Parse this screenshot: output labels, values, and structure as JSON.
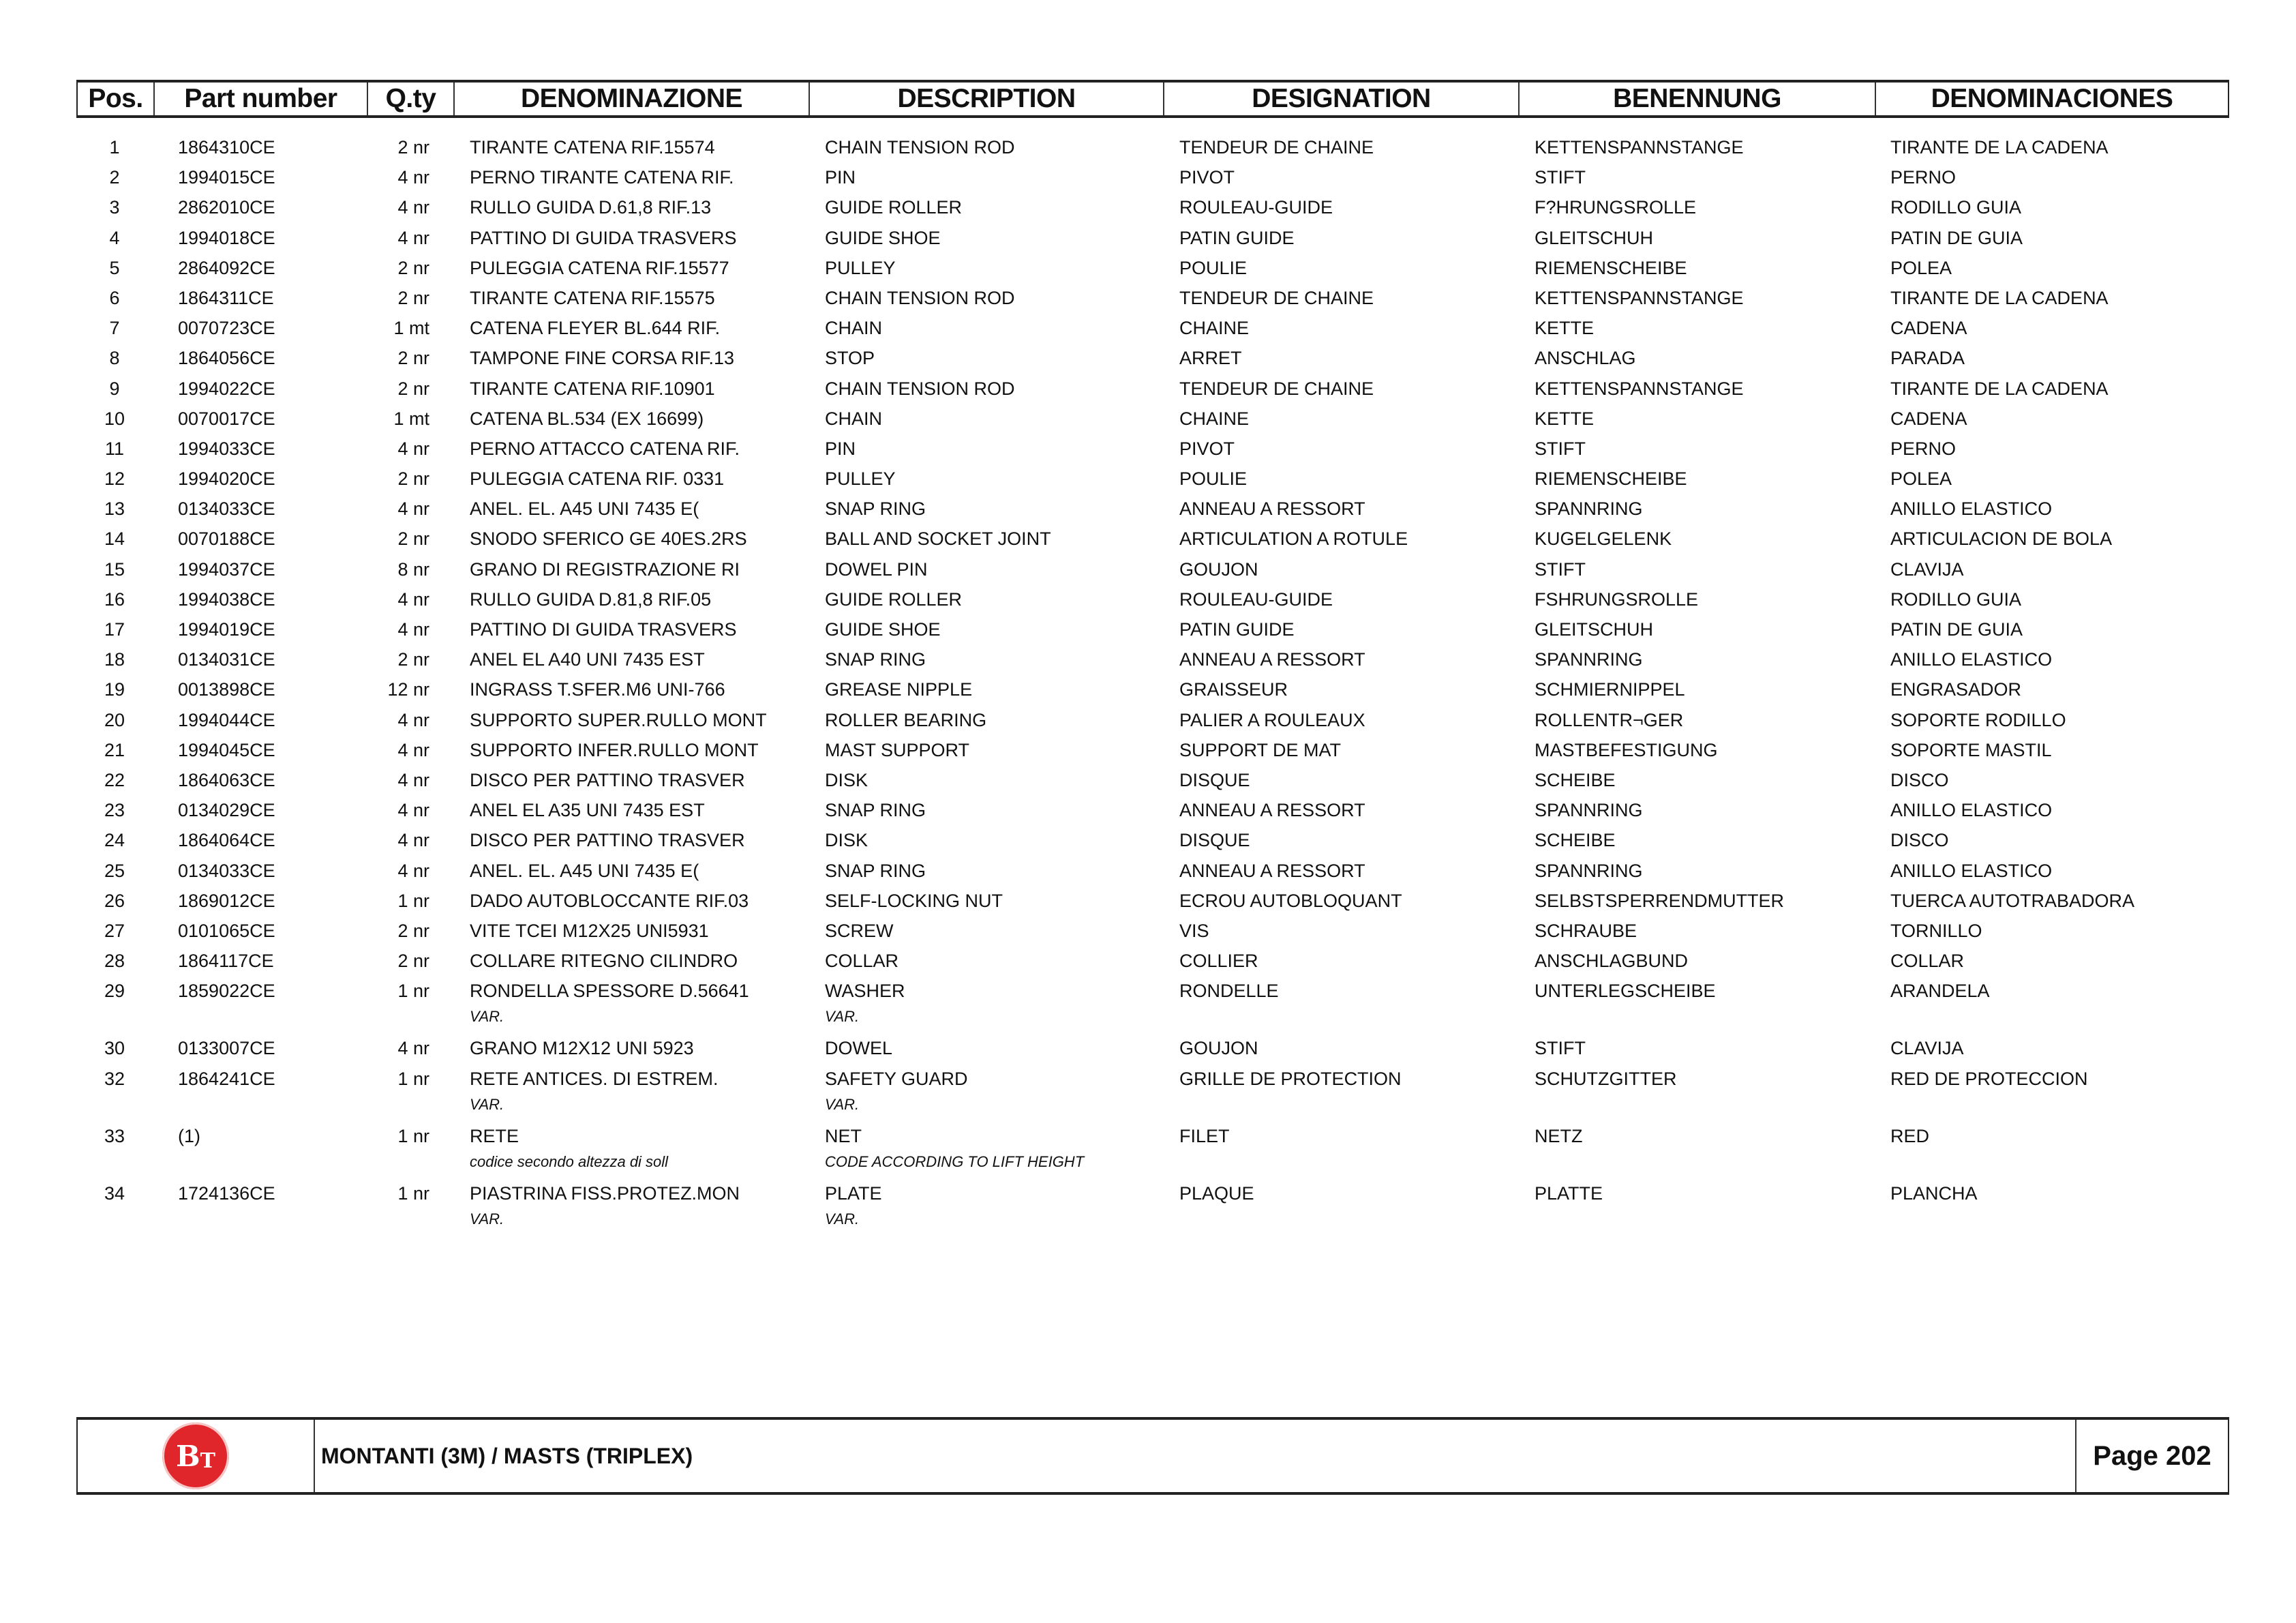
{
  "columns": {
    "pos": "Pos.",
    "part": "Part number",
    "qty": "Q.ty",
    "denominazione": "DENOMINAZIONE",
    "description": "DESCRIPTION",
    "designation": "DESIGNATION",
    "benennung": "BENENNUNG",
    "denominaciones": "DENOMINACIONES"
  },
  "rows": [
    {
      "pos": "1",
      "part": "1864310CE",
      "qty": "2 nr",
      "den": "TIRANTE CATENA RIF.15574",
      "desc": "CHAIN TENSION ROD",
      "des": "TENDEUR DE CHAINE",
      "ben": "KETTENSPANNSTANGE",
      "dens": "TIRANTE DE LA CADENA"
    },
    {
      "pos": "2",
      "part": "1994015CE",
      "qty": "4 nr",
      "den": "PERNO TIRANTE CATENA RIF.",
      "desc": "PIN",
      "des": "PIVOT",
      "ben": "STIFT",
      "dens": "PERNO"
    },
    {
      "pos": "3",
      "part": "2862010CE",
      "qty": "4 nr",
      "den": "RULLO GUIDA D.61,8 RIF.13",
      "desc": "GUIDE ROLLER",
      "des": "ROULEAU-GUIDE",
      "ben": "F?HRUNGSROLLE",
      "dens": "RODILLO GUIA"
    },
    {
      "pos": "4",
      "part": "1994018CE",
      "qty": "4 nr",
      "den": "PATTINO DI GUIDA TRASVERS",
      "desc": "GUIDE SHOE",
      "des": "PATIN GUIDE",
      "ben": "GLEITSCHUH",
      "dens": "PATIN DE GUIA"
    },
    {
      "pos": "5",
      "part": "2864092CE",
      "qty": "2 nr",
      "den": "PULEGGIA CATENA RIF.15577",
      "desc": "PULLEY",
      "des": "POULIE",
      "ben": "RIEMENSCHEIBE",
      "dens": "POLEA"
    },
    {
      "pos": "6",
      "part": "1864311CE",
      "qty": "2 nr",
      "den": "TIRANTE CATENA RIF.15575",
      "desc": "CHAIN TENSION ROD",
      "des": "TENDEUR DE CHAINE",
      "ben": "KETTENSPANNSTANGE",
      "dens": "TIRANTE DE LA CADENA"
    },
    {
      "pos": "7",
      "part": "0070723CE",
      "qty": "1 mt",
      "den": "CATENA FLEYER BL.644 RIF.",
      "desc": "CHAIN",
      "des": "CHAINE",
      "ben": "KETTE",
      "dens": "CADENA"
    },
    {
      "pos": "8",
      "part": "1864056CE",
      "qty": "2 nr",
      "den": "TAMPONE FINE CORSA RIF.13",
      "desc": "STOP",
      "des": "ARRET",
      "ben": "ANSCHLAG",
      "dens": "PARADA"
    },
    {
      "pos": "9",
      "part": "1994022CE",
      "qty": "2 nr",
      "den": "TIRANTE CATENA RIF.10901",
      "desc": "CHAIN TENSION ROD",
      "des": "TENDEUR DE CHAINE",
      "ben": "KETTENSPANNSTANGE",
      "dens": "TIRANTE DE LA CADENA"
    },
    {
      "pos": "10",
      "part": "0070017CE",
      "qty": "1 mt",
      "den": "CATENA BL.534 (EX 16699)",
      "desc": "CHAIN",
      "des": "CHAINE",
      "ben": "KETTE",
      "dens": "CADENA"
    },
    {
      "pos": "11",
      "part": "1994033CE",
      "qty": "4 nr",
      "den": "PERNO ATTACCO CATENA RIF.",
      "desc": "PIN",
      "des": "PIVOT",
      "ben": "STIFT",
      "dens": "PERNO"
    },
    {
      "pos": "12",
      "part": "1994020CE",
      "qty": "2 nr",
      "den": "PULEGGIA CATENA RIF. 0331",
      "desc": "PULLEY",
      "des": "POULIE",
      "ben": "RIEMENSCHEIBE",
      "dens": "POLEA"
    },
    {
      "pos": "13",
      "part": "0134033CE",
      "qty": "4 nr",
      "den": "ANEL. EL. A45 UNI 7435 E(",
      "desc": "SNAP RING",
      "des": "ANNEAU A RESSORT",
      "ben": "SPANNRING",
      "dens": "ANILLO ELASTICO"
    },
    {
      "pos": "14",
      "part": "0070188CE",
      "qty": "2 nr",
      "den": "SNODO SFERICO GE 40ES.2RS",
      "desc": "BALL AND SOCKET JOINT",
      "des": "ARTICULATION A ROTULE",
      "ben": "KUGELGELENK",
      "dens": "ARTICULACION DE BOLA"
    },
    {
      "pos": "15",
      "part": "1994037CE",
      "qty": "8 nr",
      "den": "GRANO DI REGISTRAZIONE RI",
      "desc": "DOWEL PIN",
      "des": "GOUJON",
      "ben": "STIFT",
      "dens": "CLAVIJA"
    },
    {
      "pos": "16",
      "part": "1994038CE",
      "qty": "4 nr",
      "den": "RULLO GUIDA D.81,8 RIF.05",
      "desc": "GUIDE ROLLER",
      "des": "ROULEAU-GUIDE",
      "ben": "FSHRUNGSROLLE",
      "dens": "RODILLO GUIA"
    },
    {
      "pos": "17",
      "part": "1994019CE",
      "qty": "4 nr",
      "den": "PATTINO DI GUIDA TRASVERS",
      "desc": "GUIDE SHOE",
      "des": "PATIN GUIDE",
      "ben": "GLEITSCHUH",
      "dens": "PATIN DE GUIA"
    },
    {
      "pos": "18",
      "part": "0134031CE",
      "qty": "2 nr",
      "den": "ANEL EL A40 UNI 7435 EST",
      "desc": "SNAP RING",
      "des": "ANNEAU A RESSORT",
      "ben": "SPANNRING",
      "dens": "ANILLO ELASTICO"
    },
    {
      "pos": "19",
      "part": "0013898CE",
      "qty": "12 nr",
      "den": "INGRASS T.SFER.M6 UNI-766",
      "desc": "GREASE NIPPLE",
      "des": "GRAISSEUR",
      "ben": "SCHMIERNIPPEL",
      "dens": "ENGRASADOR"
    },
    {
      "pos": "20",
      "part": "1994044CE",
      "qty": "4 nr",
      "den": "SUPPORTO SUPER.RULLO MONT",
      "desc": "ROLLER BEARING",
      "des": "PALIER A ROULEAUX",
      "ben": "ROLLENTR¬GER",
      "dens": "SOPORTE RODILLO"
    },
    {
      "pos": "21",
      "part": "1994045CE",
      "qty": "4 nr",
      "den": "SUPPORTO INFER.RULLO MONT",
      "desc": "MAST SUPPORT",
      "des": "SUPPORT DE MAT",
      "ben": "MASTBEFESTIGUNG",
      "dens": "SOPORTE MASTIL"
    },
    {
      "pos": "22",
      "part": "1864063CE",
      "qty": "4 nr",
      "den": "DISCO PER PATTINO TRASVER",
      "desc": "DISK",
      "des": "DISQUE",
      "ben": "SCHEIBE",
      "dens": "DISCO"
    },
    {
      "pos": "23",
      "part": "0134029CE",
      "qty": "4 nr",
      "den": "ANEL EL A35 UNI 7435 EST",
      "desc": "SNAP RING",
      "des": "ANNEAU A RESSORT",
      "ben": "SPANNRING",
      "dens": "ANILLO ELASTICO"
    },
    {
      "pos": "24",
      "part": "1864064CE",
      "qty": "4 nr",
      "den": "DISCO PER PATTINO TRASVER",
      "desc": "DISK",
      "des": "DISQUE",
      "ben": "SCHEIBE",
      "dens": "DISCO"
    },
    {
      "pos": "25",
      "part": "0134033CE",
      "qty": "4 nr",
      "den": "ANEL. EL. A45 UNI 7435 E(",
      "desc": "SNAP RING",
      "des": "ANNEAU A RESSORT",
      "ben": "SPANNRING",
      "dens": "ANILLO ELASTICO"
    },
    {
      "pos": "26",
      "part": "1869012CE",
      "qty": "1 nr",
      "den": "DADO AUTOBLOCCANTE RIF.03",
      "desc": "SELF-LOCKING NUT",
      "des": "ECROU AUTOBLOQUANT",
      "ben": "SELBSTSPERRENDMUTTER",
      "dens": "TUERCA AUTOTRABADORA"
    },
    {
      "pos": "27",
      "part": "0101065CE",
      "qty": "2 nr",
      "den": "VITE TCEI M12X25 UNI5931",
      "desc": "SCREW",
      "des": "VIS",
      "ben": "SCHRAUBE",
      "dens": "TORNILLO"
    },
    {
      "pos": "28",
      "part": "1864117CE",
      "qty": "2 nr",
      "den": "COLLARE RITEGNO CILINDRO",
      "desc": "COLLAR",
      "des": "COLLIER",
      "ben": "ANSCHLAGBUND",
      "dens": "COLLAR"
    },
    {
      "pos": "29",
      "part": "1859022CE",
      "qty": "1 nr",
      "den": "RONDELLA SPESSORE D.56641",
      "desc": "WASHER",
      "des": "RONDELLE",
      "ben": "UNTERLEGSCHEIBE",
      "dens": "ARANDELA",
      "note_den": "VAR.",
      "note_desc": "VAR."
    },
    {
      "pos": "30",
      "part": "0133007CE",
      "qty": "4 nr",
      "den": "GRANO M12X12 UNI 5923",
      "desc": "DOWEL",
      "des": "GOUJON",
      "ben": "STIFT",
      "dens": "CLAVIJA"
    },
    {
      "pos": "32",
      "part": "1864241CE",
      "qty": "1 nr",
      "den": "RETE ANTICES. DI ESTREM.",
      "desc": "SAFETY GUARD",
      "des": "GRILLE DE PROTECTION",
      "ben": "SCHUTZGITTER",
      "dens": "RED DE PROTECCION",
      "note_den": "VAR.",
      "note_desc": "VAR."
    },
    {
      "pos": "33",
      "part": "(1)",
      "qty": "1 nr",
      "den": "RETE",
      "desc": "NET",
      "des": "FILET",
      "ben": "NETZ",
      "dens": "RED",
      "note_den": "codice secondo altezza di soll",
      "note_desc": "CODE ACCORDING TO LIFT HEIGHT"
    },
    {
      "pos": "34",
      "part": "1724136CE",
      "qty": "1 nr",
      "den": "PIASTRINA FISS.PROTEZ.MON",
      "desc": "PLATE",
      "des": "PLAQUE",
      "ben": "PLATTE",
      "dens": "PLANCHA",
      "note_den": "VAR.",
      "note_desc": "VAR."
    }
  ],
  "footer": {
    "logo_text": "BT",
    "logo_color": "#e0262b",
    "title": "MONTANTI (3M) / MASTS (TRIPLEX)",
    "page": "Page 202"
  }
}
